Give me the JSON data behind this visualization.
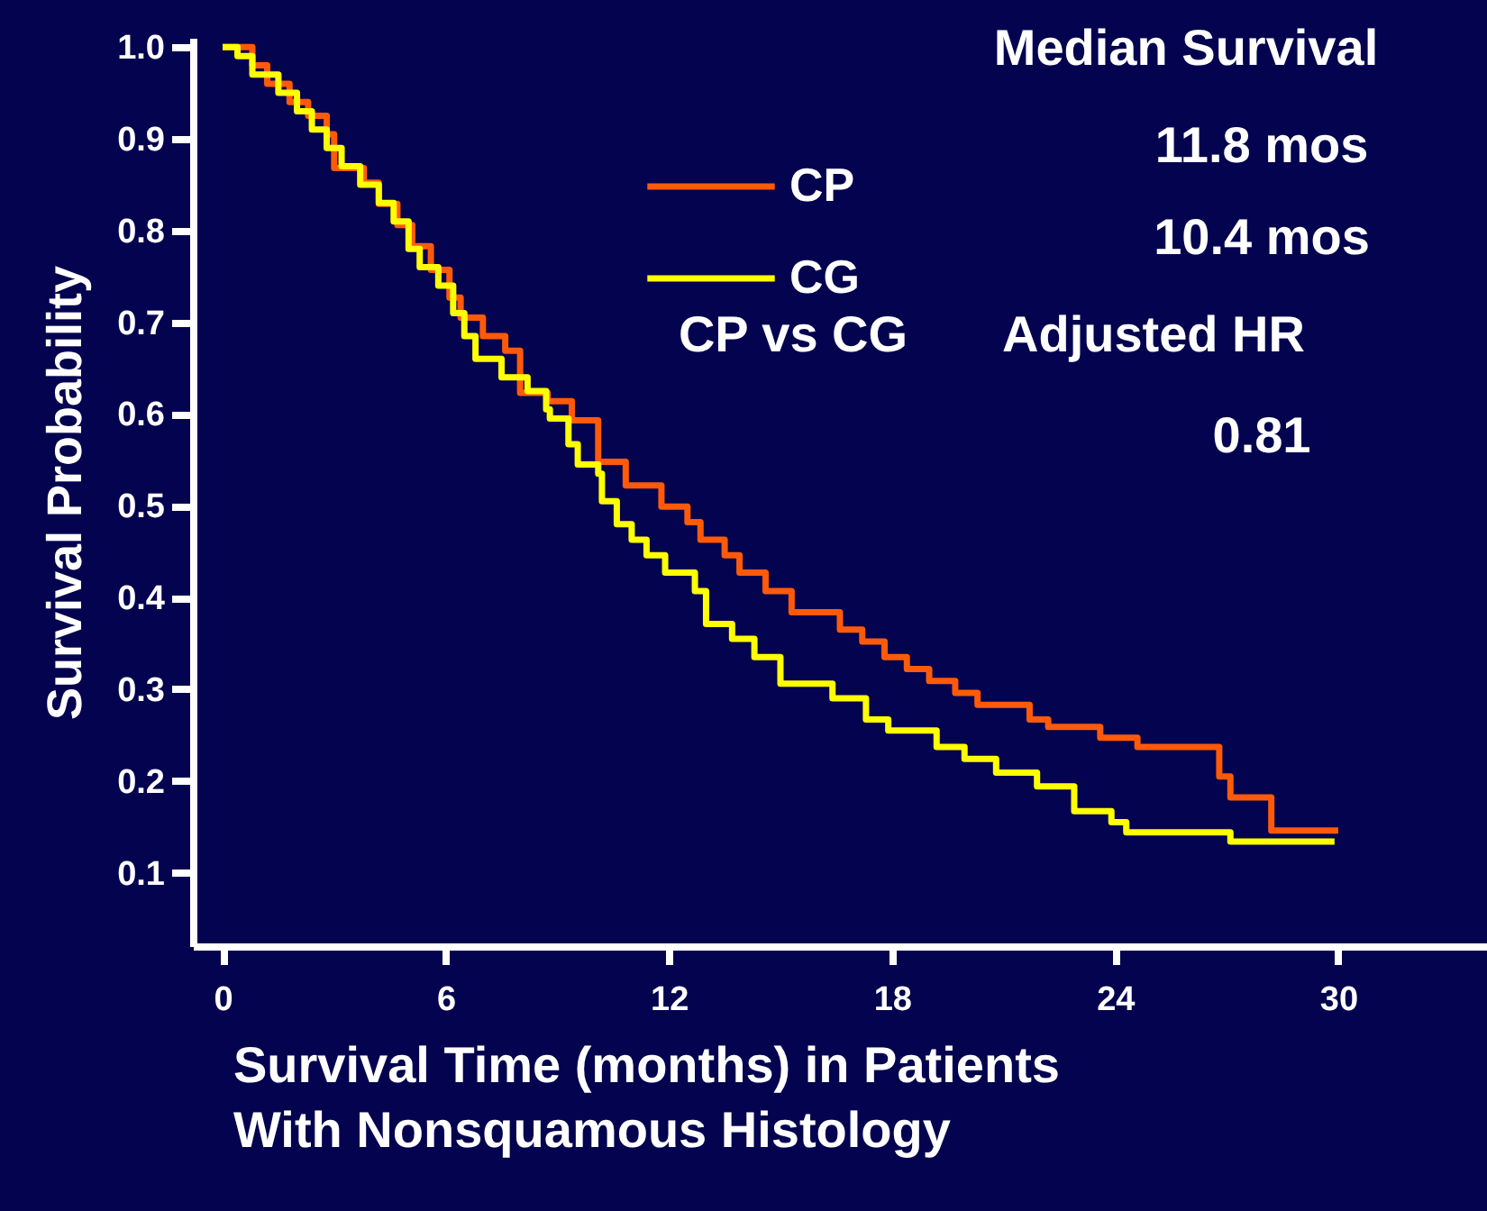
{
  "chart_data": {
    "type": "step",
    "xlabel": "Survival Time (months) in Patients With Nonsquamous Histology",
    "ylabel": "Survival Probability",
    "xlim": [
      -0.8,
      34
    ],
    "ylim": [
      0.02,
      1.01
    ],
    "xticks": [
      0,
      6,
      12,
      18,
      24,
      30
    ],
    "yticks": [
      0.1,
      0.2,
      0.3,
      0.4,
      0.5,
      0.6,
      0.7,
      0.8,
      0.9,
      {
        "value": 1.0,
        "label": "1.0"
      }
    ],
    "grid": false,
    "legend": "top",
    "marker": "none",
    "line_style": "solid",
    "annotations": [
      "Median Survival",
      "11.8 mos",
      "10.4 mos",
      "CP vs CG",
      "Adjusted HR",
      "0.81"
    ],
    "series": [
      {
        "name": "CP",
        "color": "#ff5a0a",
        "x": [
          0,
          0.8,
          1.2,
          1.8,
          2.3,
          2.8,
          3.0,
          3.8,
          4.2,
          4.7,
          5.1,
          5.6,
          6.1,
          6.4,
          7.0,
          7.6,
          8.0,
          8.74,
          9.39,
          10.1,
          10.84,
          11.8,
          12.5,
          12.85,
          13.5,
          13.9,
          14.6,
          15.3,
          16.6,
          17.2,
          17.8,
          18.4,
          19.0,
          19.7,
          20.3,
          21.7,
          22.2,
          23.6,
          24.6,
          26.8,
          27.1,
          28.2,
          30.0
        ],
        "values": [
          1.0,
          0.98,
          0.96,
          0.94,
          0.925,
          0.905,
          0.868,
          0.852,
          0.829,
          0.806,
          0.783,
          0.757,
          0.727,
          0.705,
          0.685,
          0.669,
          0.623,
          0.614,
          0.593,
          0.548,
          0.522,
          0.499,
          0.482,
          0.463,
          0.446,
          0.427,
          0.407,
          0.384,
          0.365,
          0.352,
          0.335,
          0.322,
          0.309,
          0.296,
          0.283,
          0.267,
          0.259,
          0.247,
          0.237,
          0.205,
          0.182,
          0.146,
          0.146
        ]
      },
      {
        "name": "CG",
        "color": "#ffff00",
        "x": [
          0,
          0.4,
          0.8,
          1.5,
          2.0,
          2.4,
          2.8,
          3.2,
          3.7,
          4.2,
          4.6,
          5.0,
          5.3,
          5.8,
          6.2,
          6.5,
          6.8,
          7.5,
          8.2,
          8.7,
          8.8,
          9.3,
          9.55,
          10.1,
          10.2,
          10.6,
          11.0,
          11.4,
          11.9,
          12.7,
          13.0,
          13.7,
          14.3,
          15.0,
          16.4,
          17.3,
          17.9,
          19.2,
          19.95,
          20.8,
          21.9,
          22.9,
          23.9,
          24.3,
          27.1,
          29.9
        ],
        "values": [
          1.0,
          0.99,
          0.97,
          0.95,
          0.93,
          0.91,
          0.89,
          0.87,
          0.85,
          0.83,
          0.81,
          0.78,
          0.76,
          0.74,
          0.71,
          0.685,
          0.66,
          0.64,
          0.625,
          0.605,
          0.595,
          0.567,
          0.545,
          0.535,
          0.505,
          0.48,
          0.463,
          0.446,
          0.427,
          0.407,
          0.371,
          0.355,
          0.335,
          0.306,
          0.29,
          0.267,
          0.255,
          0.237,
          0.224,
          0.209,
          0.194,
          0.167,
          0.155,
          0.144,
          0.134,
          0.134
        ]
      }
    ]
  }
}
